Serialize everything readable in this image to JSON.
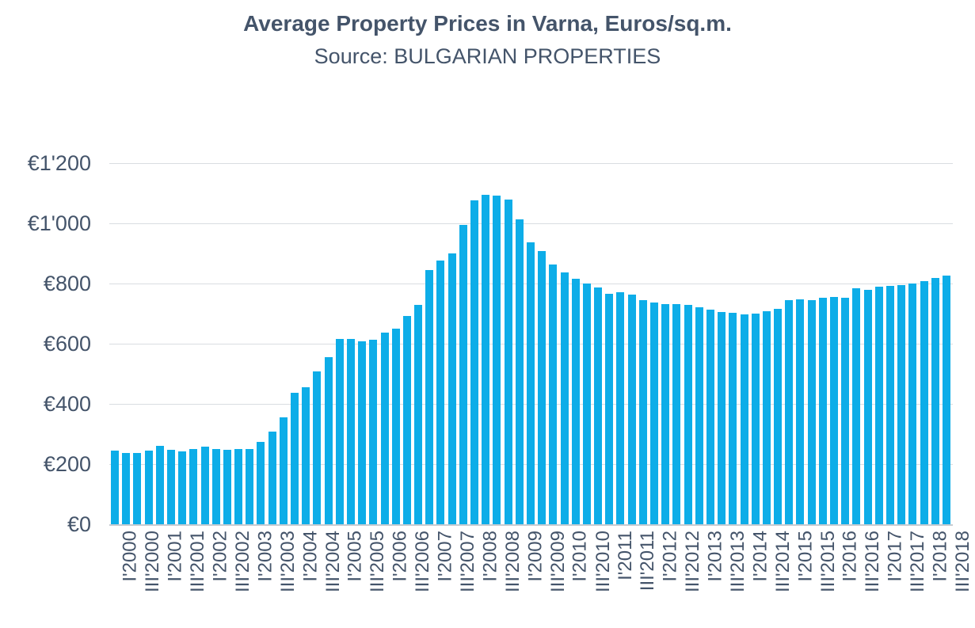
{
  "chart_data": {
    "type": "bar",
    "title": "Average Property Prices in Varna, Euros/sq.m.",
    "subtitle": "Source: BULGARIAN PROPERTIES",
    "xlabel": "",
    "ylabel": "",
    "ylim": [
      0,
      1200
    ],
    "grid": true,
    "legend": false,
    "x_label_every": 2,
    "yticks": [
      {
        "value": 0,
        "label": "€0"
      },
      {
        "value": 200,
        "label": "€200"
      },
      {
        "value": 400,
        "label": "€400"
      },
      {
        "value": 600,
        "label": "€600"
      },
      {
        "value": 800,
        "label": "€800"
      },
      {
        "value": 1000,
        "label": "€1'000"
      },
      {
        "value": 1200,
        "label": "€1'200"
      }
    ],
    "categories": [
      "I'2000",
      "II'2000",
      "III'2000",
      "IV'2000",
      "I'2001",
      "II'2001",
      "III'2001",
      "IV'2001",
      "I'2002",
      "II'2002",
      "III'2002",
      "IV'2002",
      "I'2003",
      "II'2003",
      "III'2003",
      "IV'2003",
      "I'2004",
      "II'2004",
      "III'2004",
      "IV'2004",
      "I'2005",
      "II'2005",
      "III'2005",
      "IV'2005",
      "I'2006",
      "II'2006",
      "III'2006",
      "IV'2006",
      "I'2007",
      "II'2007",
      "III'2007",
      "IV'2007",
      "I'2008",
      "II'2008",
      "III'2008",
      "IV'2008",
      "I'2009",
      "II'2009",
      "III'2009",
      "IV'2009",
      "I'2010",
      "II'2010",
      "III'2010",
      "IV'2010",
      "I'2011",
      "II'2011",
      "III'2011",
      "IV'2011",
      "I'2012",
      "II'2012",
      "III'2012",
      "IV'2012",
      "I'2013",
      "II'2013",
      "III'2013",
      "IV'2013",
      "I'2014",
      "II'2014",
      "III'2014",
      "IV'2014",
      "I'2015",
      "II'2015",
      "III'2015",
      "IV'2015",
      "I'2016",
      "II'2016",
      "III'2016",
      "IV'2016",
      "I'2017",
      "II'2017",
      "III'2017",
      "IV'2017",
      "I'2018",
      "II'2018",
      "III'2018"
    ],
    "values": [
      245,
      236,
      237,
      244,
      260,
      247,
      241,
      250,
      257,
      250,
      247,
      250,
      250,
      274,
      308,
      355,
      436,
      456,
      509,
      555,
      615,
      616,
      609,
      614,
      638,
      650,
      691,
      730,
      845,
      877,
      900,
      996,
      1077,
      1096,
      1092,
      1078,
      1014,
      937,
      907,
      864,
      838,
      817,
      800,
      786,
      765,
      772,
      764,
      746,
      736,
      731,
      731,
      729,
      721,
      713,
      706,
      702,
      698,
      700,
      707,
      715,
      745,
      748,
      746,
      752,
      754,
      752,
      783,
      779,
      789,
      792,
      796,
      801,
      807,
      818,
      826
    ],
    "colors": {
      "bar": "#0DADE8",
      "text": "#44546A",
      "gridline": "#D9DDE1",
      "axis": "#C7CBD1"
    }
  }
}
